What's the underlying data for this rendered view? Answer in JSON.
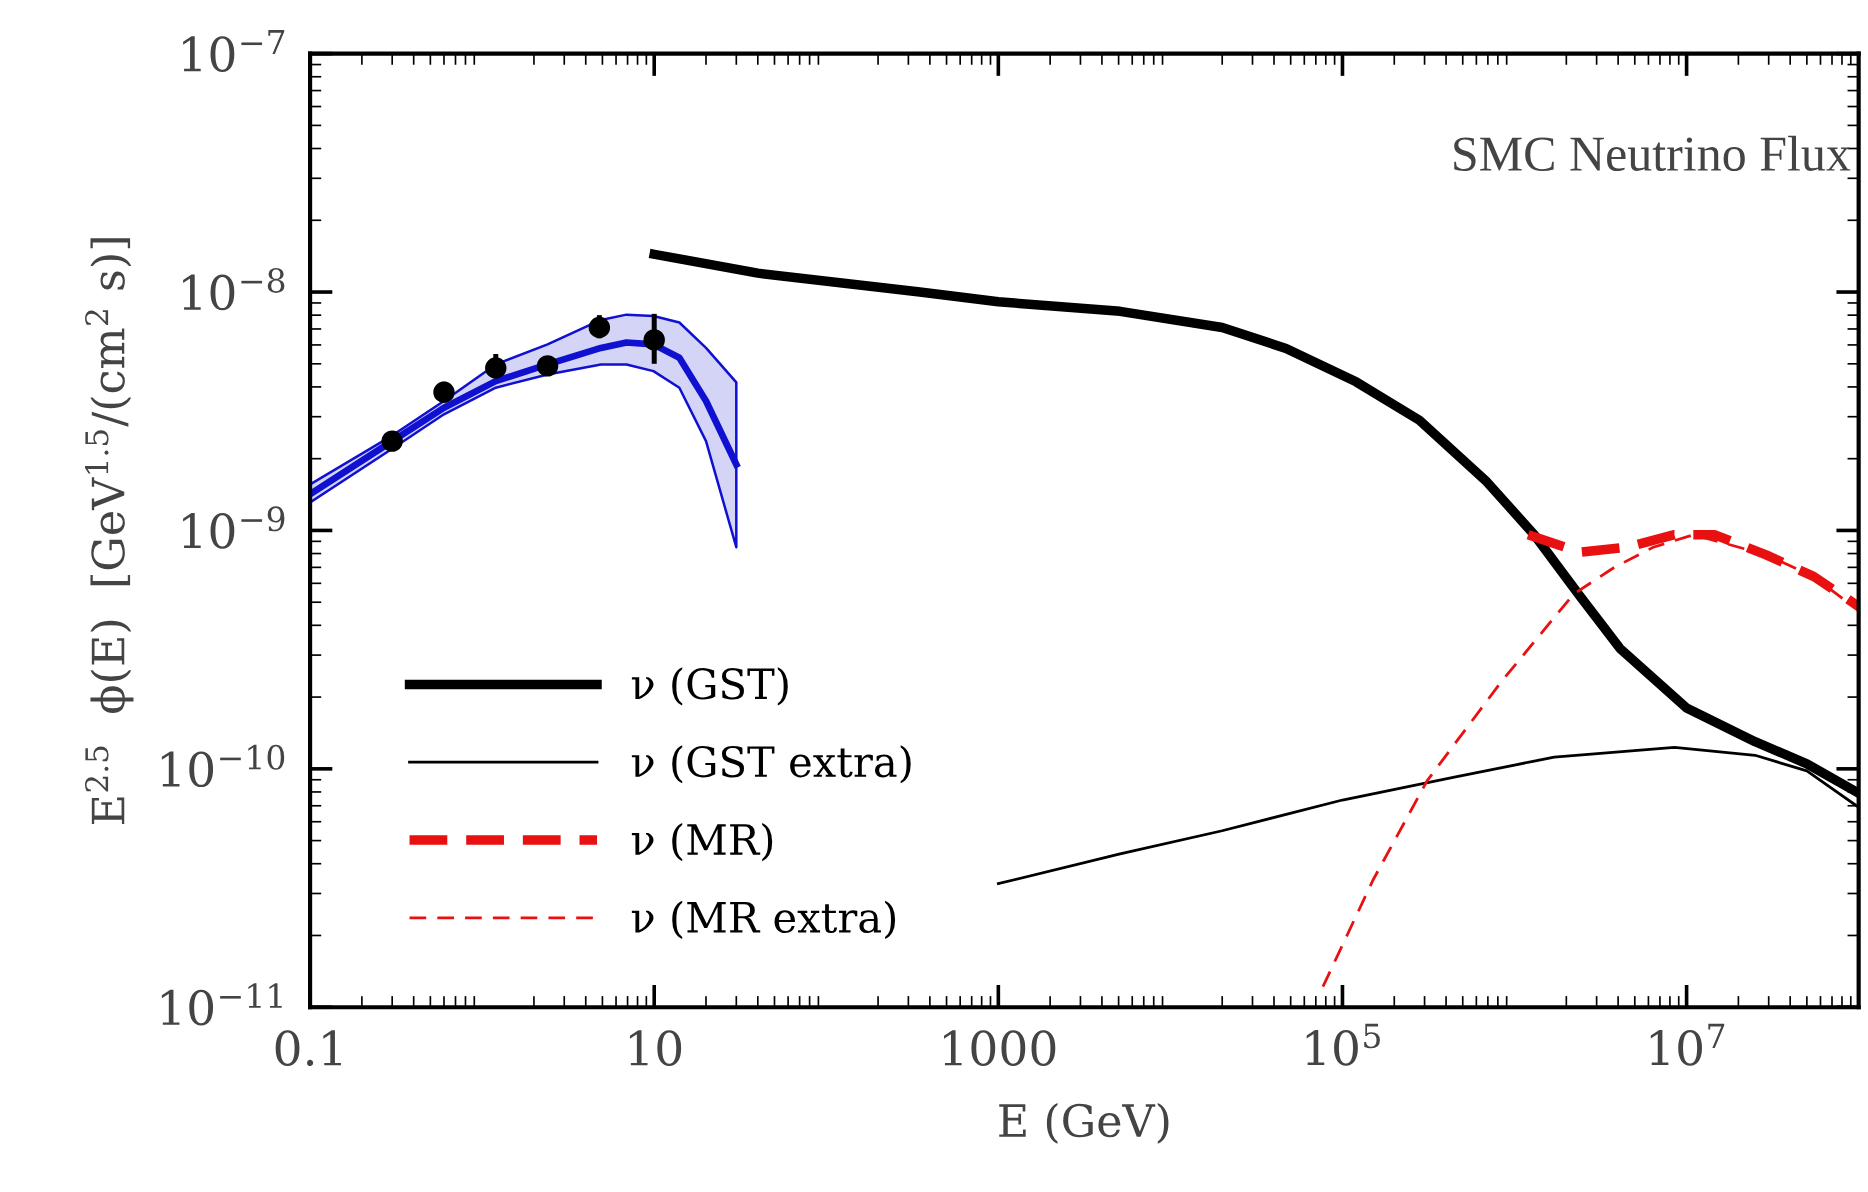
{
  "chart_data": {
    "type": "line",
    "title": "SMC Neutrino Flux",
    "xlabel": "E (GeV)",
    "ylabel": "E$^{2.5}$  ϕ(E)  [GeV$^{1.5}$/(cm$^{2}$ s)]",
    "log": "xy",
    "xlim": [
      0.1,
      100000000.0
    ],
    "ylim": [
      1e-11,
      1e-07
    ],
    "xticks": [
      0.1,
      10,
      1000,
      {
        "value": 100000,
        "label": "10$^{5}$"
      },
      {
        "value": 10000000,
        "label": "10$^{7}$"
      }
    ],
    "yticks": [
      {
        "value": 1e-11,
        "label": "10$^{−11}$"
      },
      {
        "value": 1e-10,
        "label": "10$^{−10}$"
      },
      {
        "value": 1e-09,
        "label": "10$^{−9}$"
      },
      {
        "value": 1e-08,
        "label": "10$^{−8}$"
      },
      {
        "value": 1e-07,
        "label": "10$^{−7}$"
      }
    ],
    "grid": false,
    "legend": "bottom left",
    "series": [
      {
        "name": "ν (GST)",
        "color": "#000000",
        "line_style": "solid",
        "x": [
          10,
          40,
          350,
          1000,
          5100,
          20000,
          47000,
          120000,
          280000,
          690000,
          1300000,
          2400000,
          4100000,
          10000000,
          25000000,
          50000000,
          100000000
        ],
        "values": [
          1.44e-08,
          1.2e-08,
          1e-08,
          9.1e-09,
          8.3e-09,
          7.1e-09,
          5.8e-09,
          4.2e-09,
          2.9e-09,
          1.6e-09,
          9.6e-10,
          5.3e-10,
          3.2e-10,
          1.8e-10,
          1.3e-10,
          1.05e-10,
          7.9e-11
        ]
      },
      {
        "name": "ν (GST extra)",
        "color": "#000000",
        "line_style": "solid",
        "x": [
          1000,
          5100,
          20000,
          100000,
          440000,
          1700000,
          8500000,
          25000000,
          50000000,
          100000000
        ],
        "values": [
          3.3e-11,
          4.4e-11,
          5.5e-11,
          7.4e-11,
          9.2e-11,
          1.12e-10,
          1.23e-10,
          1.14e-10,
          9.8e-11,
          6.9e-11
        ]
      },
      {
        "name": "ν (MR)",
        "color": "#e81010",
        "line_style": "dashed",
        "x": [
          1200000,
          2400000,
          4500000,
          8500000,
          14500000,
          29000000,
          55000000,
          100000000
        ],
        "values": [
          9.6e-10,
          8.1e-10,
          8.5e-10,
          9.6e-10,
          9.6e-10,
          7.9e-10,
          6.4e-10,
          4.8e-10
        ]
      },
      {
        "name": "ν (MR extra)",
        "color": "#e81010",
        "line_style": "dashed",
        "x": [
          77000,
          150000,
          310000,
          830000,
          2200000,
          3800000,
          6400000,
          11000000,
          29000000,
          55000000,
          100000000
        ],
        "values": [
          1.22e-11,
          3.4e-11,
          8.9e-11,
          2.3e-10,
          5.4e-10,
          7e-10,
          8.5e-10,
          9.6e-10,
          7.9e-10,
          6.4e-10,
          4.6e-10
        ]
      },
      {
        "color": "#1010d0",
        "line_style": "solid",
        "x": [
          0.1,
          0.3,
          0.6,
          1.2,
          2.4,
          4.9,
          6.9,
          9.9,
          14,
          20,
          30
        ],
        "values": [
          1.42e-09,
          2.37e-09,
          3.27e-09,
          4.23e-09,
          4.97e-09,
          5.83e-09,
          6.14e-09,
          6.03e-09,
          5.3e-09,
          3.49e-09,
          1.89e-09
        ],
        "lower": [
          1.31e-09,
          2.2e-09,
          3.07e-09,
          3.97e-09,
          4.51e-09,
          4.97e-09,
          4.97e-09,
          4.66e-09,
          3.97e-09,
          2.37e-09,
          8.5e-10
        ],
        "upper": [
          1.56e-09,
          2.5e-09,
          3.49e-09,
          4.97e-09,
          6.03e-09,
          7.64e-09,
          8.04e-09,
          7.94e-09,
          7.45e-09,
          5.83e-09,
          4.18e-09
        ]
      },
      {
        "type": "scatter",
        "color": "#000000",
        "marker": "circle",
        "x": [
          0.3,
          0.6,
          1.2,
          2.4,
          4.8,
          10
        ],
        "values": [
          2.37e-09,
          3.8e-09,
          4.8e-09,
          4.9e-09,
          7.1e-09,
          6.3e-09
        ],
        "errors": [
          null,
          [
            3.5e-09,
            4.2e-09
          ],
          [
            4.45e-09,
            5.5e-09
          ],
          null,
          [
            6.4e-09,
            8e-09
          ],
          [
            5e-09,
            8.1e-09
          ]
        ]
      }
    ]
  }
}
